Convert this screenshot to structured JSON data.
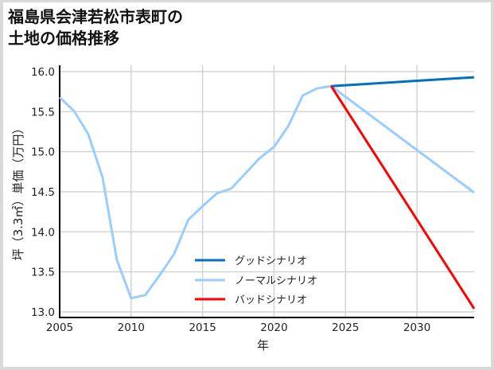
{
  "title": "福島県会津若松市表町の\n土地の価格推移",
  "chart_data": {
    "type": "line",
    "title": "福島県会津若松市表町の土地の価格推移",
    "xlabel": "年",
    "ylabel": "坪（3.3㎡）単価（万円）",
    "xlim": [
      2005,
      2034
    ],
    "ylim": [
      12.93,
      16.08
    ],
    "x_ticks": [
      2005,
      2010,
      2015,
      2020,
      2025,
      2030
    ],
    "y_ticks": [
      13.0,
      13.5,
      14.0,
      14.5,
      15.0,
      15.5,
      16.0
    ],
    "x_tick_labels": [
      "2005",
      "2010",
      "2015",
      "2020",
      "2025",
      "2030"
    ],
    "y_tick_labels": [
      "13.0",
      "13.5",
      "14.0",
      "14.5",
      "15.0",
      "15.5",
      "16.0"
    ],
    "grid": true,
    "legend_position": "lower center",
    "series": [
      {
        "name": "グッドシナリオ",
        "color": "#0070C0",
        "x": [
          2024,
          2034
        ],
        "values": [
          15.82,
          15.93
        ]
      },
      {
        "name": "ノーマルシナリオ",
        "color": "#99CCFF",
        "x": [
          2005,
          2006,
          2007,
          2008,
          2009,
          2010,
          2011,
          2012,
          2013,
          2014,
          2015,
          2016,
          2017,
          2018,
          2019,
          2020,
          2021,
          2022,
          2023,
          2024,
          2034
        ],
        "values": [
          15.68,
          15.51,
          15.22,
          14.68,
          13.65,
          13.17,
          13.21,
          13.46,
          13.72,
          14.15,
          14.32,
          14.48,
          14.54,
          14.73,
          14.92,
          15.06,
          15.32,
          15.7,
          15.79,
          15.82,
          14.49
        ]
      },
      {
        "name": "バッドシナリオ",
        "color": "#FF0000",
        "x": [
          2024,
          2034
        ],
        "values": [
          15.82,
          13.04
        ]
      }
    ]
  }
}
